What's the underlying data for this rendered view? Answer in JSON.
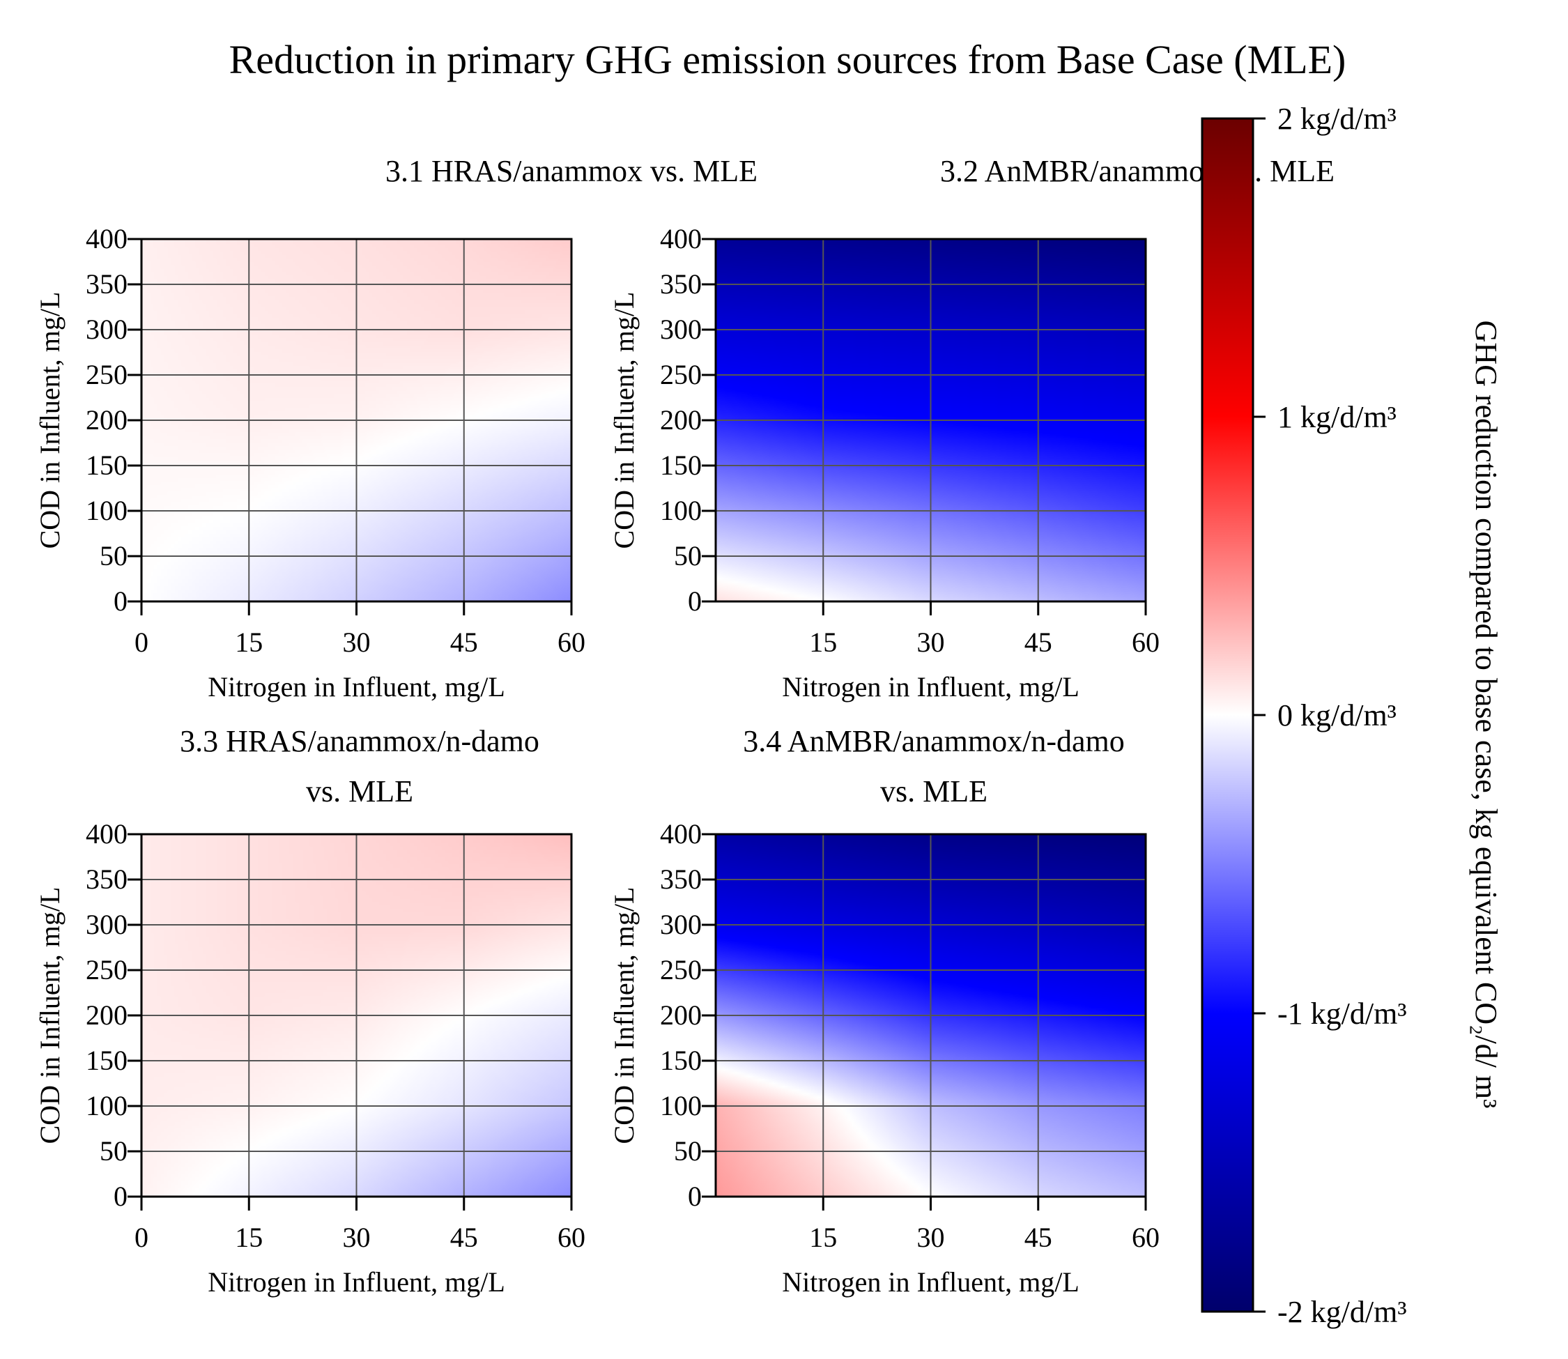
{
  "figure_title": "Reduction in primary GHG emission sources from Base Case (MLE)",
  "colorbar": {
    "label": "GHG reduction compared to base case, kg equivalent CO₂/d/ m³",
    "ticks": [
      {
        "value": 2,
        "label": "2 kg/d/m³"
      },
      {
        "value": 1,
        "label": "1 kg/d/m³"
      },
      {
        "value": 0,
        "label": "0 kg/d/m³"
      },
      {
        "value": -1,
        "label": "-1 kg/d/m³"
      },
      {
        "value": -2,
        "label": "-2 kg/d/m³"
      }
    ],
    "range": [
      -2,
      2
    ],
    "colors": {
      "max": "#6b0000",
      "high": "#ff0000",
      "zero": "#ffffff",
      "low": "#0000ff",
      "min": "#00006b"
    }
  },
  "chart_data": [
    {
      "type": "heatmap",
      "title": "3.1 HRAS/anammox vs. MLE",
      "xlabel": "Nitrogen in Influent, mg/L",
      "ylabel": "COD in Influent, mg/L",
      "xlim": [
        0,
        60
      ],
      "ylim": [
        0,
        400
      ],
      "x_ticks": [
        "0",
        "15",
        "30",
        "45",
        "60"
      ],
      "y_ticks": [
        "0",
        "50",
        "100",
        "150",
        "200",
        "250",
        "300",
        "350",
        "400"
      ],
      "x": [
        0,
        15,
        30,
        45,
        60
      ],
      "y": [
        0,
        100,
        200,
        300,
        400
      ],
      "z": [
        [
          0.0,
          -0.08,
          -0.18,
          -0.3,
          -0.45
        ],
        [
          0.02,
          0.0,
          -0.06,
          -0.15,
          -0.25
        ],
        [
          0.04,
          0.06,
          0.05,
          0.0,
          -0.05
        ],
        [
          0.05,
          0.08,
          0.1,
          0.12,
          0.1
        ],
        [
          0.06,
          0.1,
          0.12,
          0.15,
          0.2
        ]
      ],
      "grid": true
    },
    {
      "type": "heatmap",
      "title": "3.2 AnMBR/anammox vs. MLE",
      "xlabel": "Nitrogen in Influent, mg/L",
      "ylabel": "COD in Influent, mg/L",
      "xlim": [
        0,
        60
      ],
      "ylim": [
        0,
        400
      ],
      "x_ticks": [
        "15",
        "30",
        "45",
        "60"
      ],
      "y_ticks": [
        "0",
        "50",
        "100",
        "150",
        "200",
        "250",
        "300",
        "350",
        "400"
      ],
      "x": [
        0,
        15,
        30,
        45,
        60
      ],
      "y": [
        0,
        100,
        200,
        300,
        400
      ],
      "z": [
        [
          0.12,
          0.0,
          -0.15,
          -0.25,
          -0.35
        ],
        [
          -0.35,
          -0.45,
          -0.55,
          -0.65,
          -0.75
        ],
        [
          -0.85,
          -0.95,
          -1.0,
          -1.05,
          -1.1
        ],
        [
          -1.25,
          -1.3,
          -1.35,
          -1.4,
          -1.45
        ],
        [
          -1.7,
          -1.75,
          -1.8,
          -1.85,
          -1.9
        ]
      ],
      "grid": true
    },
    {
      "type": "heatmap",
      "title": "3.3 HRAS/anammox/n-damo vs. MLE",
      "xlabel": "Nitrogen in Influent, mg/L",
      "ylabel": "COD in Influent, mg/L",
      "xlim": [
        0,
        60
      ],
      "ylim": [
        0,
        400
      ],
      "x_ticks": [
        "0",
        "15",
        "30",
        "45",
        "60"
      ],
      "y_ticks": [
        "0",
        "50",
        "100",
        "150",
        "200",
        "250",
        "300",
        "350",
        "400"
      ],
      "x": [
        0,
        15,
        30,
        45,
        60
      ],
      "y": [
        0,
        100,
        200,
        300,
        400
      ],
      "z": [
        [
          0.05,
          -0.05,
          -0.15,
          -0.3,
          -0.45
        ],
        [
          0.07,
          0.05,
          0.0,
          -0.1,
          -0.22
        ],
        [
          0.08,
          0.1,
          0.08,
          0.0,
          -0.08
        ],
        [
          0.08,
          0.12,
          0.15,
          0.15,
          0.1
        ],
        [
          0.08,
          0.12,
          0.16,
          0.2,
          0.25
        ]
      ],
      "grid": true
    },
    {
      "type": "heatmap",
      "title": "3.4 AnMBR/anammox/n-damo vs. MLE",
      "xlabel": "Nitrogen in Influent, mg/L",
      "ylabel": "COD in Influent, mg/L",
      "xlim": [
        0,
        60
      ],
      "ylim": [
        0,
        400
      ],
      "x_ticks": [
        "15",
        "30",
        "45",
        "60"
      ],
      "y_ticks": [
        "0",
        "50",
        "100",
        "150",
        "200",
        "250",
        "300",
        "350",
        "400"
      ],
      "x": [
        0,
        15,
        30,
        45,
        60
      ],
      "y": [
        0,
        100,
        200,
        300,
        400
      ],
      "z": [
        [
          0.4,
          0.2,
          0.0,
          -0.15,
          -0.25
        ],
        [
          0.3,
          0.05,
          -0.25,
          -0.4,
          -0.5
        ],
        [
          -0.4,
          -0.6,
          -0.8,
          -0.9,
          -1.0
        ],
        [
          -1.1,
          -1.2,
          -1.3,
          -1.4,
          -1.5
        ],
        [
          -1.6,
          -1.7,
          -1.8,
          -1.85,
          -1.9
        ]
      ],
      "grid": true
    }
  ]
}
